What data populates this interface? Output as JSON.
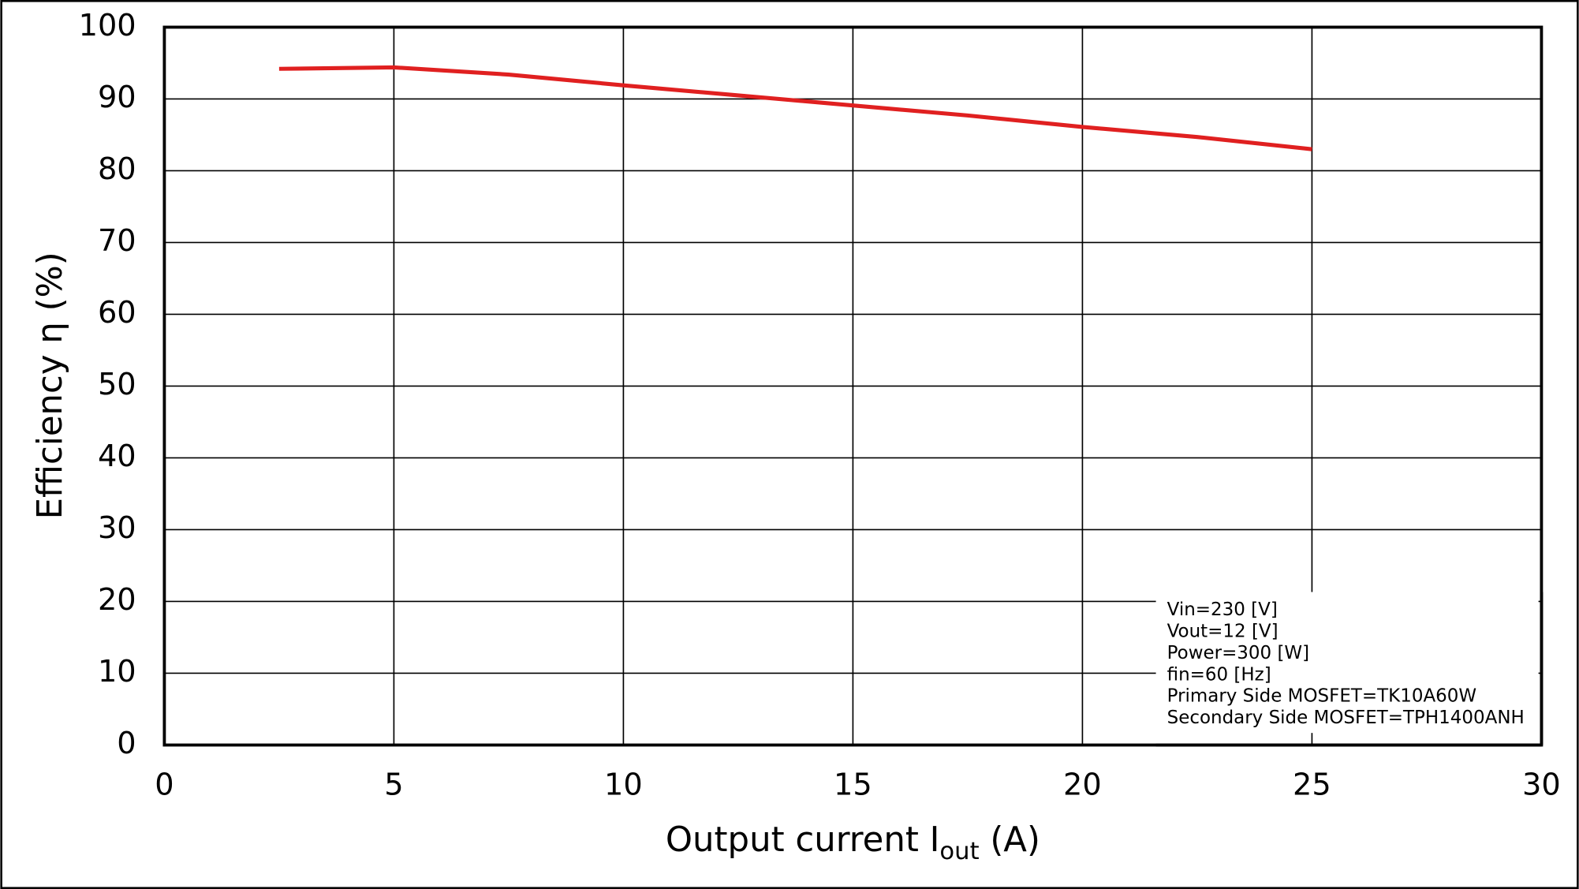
{
  "chart_data": {
    "type": "line",
    "xlabel": [
      "Output current  I",
      "out",
      " (A)"
    ],
    "ylabel": "Efficiency  η (%)",
    "x": [
      2.5,
      5,
      7.5,
      10,
      12.5,
      15,
      17.5,
      20,
      22.5,
      25
    ],
    "series": [
      {
        "color": "#e02020",
        "values": [
          94.2,
          94.4,
          93.4,
          91.9,
          90.5,
          89.1,
          87.7,
          86.1,
          84.7,
          83.0
        ]
      }
    ],
    "xlim": [
      0,
      30
    ],
    "xticks": [
      0,
      5,
      10,
      15,
      20,
      25,
      30
    ],
    "ylim": [
      0,
      100
    ],
    "yticks": [
      0,
      10,
      20,
      30,
      40,
      50,
      60,
      70,
      80,
      90,
      100
    ],
    "grid": true,
    "annotations": [
      "Vin=230 [V]",
      "Vout=12 [V]",
      "Power=300 [W]",
      "fin=60 [Hz]",
      "Primary Side MOSFET=TK10A60W",
      "Secondary Side MOSFET=TPH1400ANH"
    ]
  }
}
